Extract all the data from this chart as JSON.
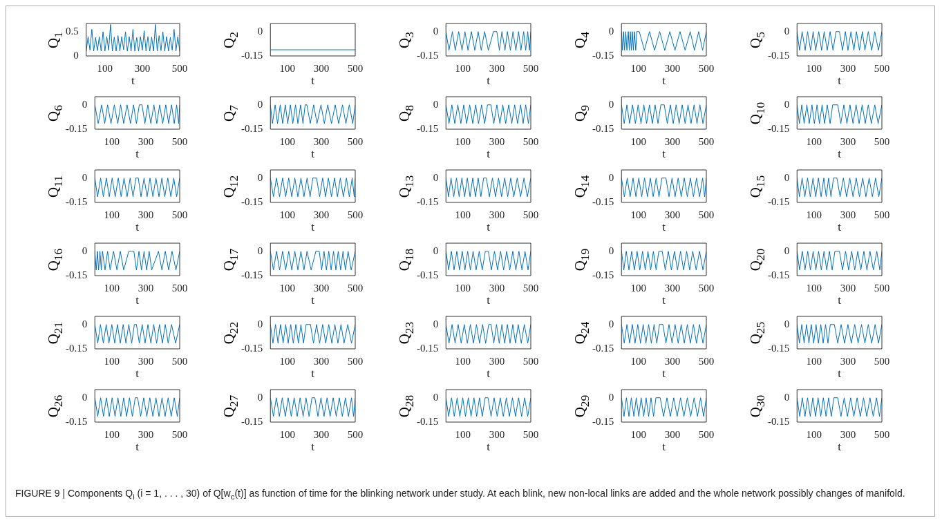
{
  "chart_data": [
    {
      "type": "line",
      "ylabel": "Q$_{1}$",
      "xlabel": "t",
      "color": "#0072bd",
      "xlim": [
        0,
        500
      ],
      "xticks": [
        100,
        300,
        500
      ],
      "ylim": [
        0,
        0.67
      ],
      "yticks": [
        0,
        0.5
      ],
      "x": [
        0,
        10,
        20,
        30,
        40,
        50,
        60,
        70,
        80,
        90,
        100,
        110,
        120,
        130,
        140,
        150,
        160,
        170,
        180,
        190,
        200,
        210,
        220,
        230,
        240,
        250,
        260,
        270,
        280,
        290,
        300,
        310,
        320,
        330,
        340,
        350,
        360,
        370,
        380,
        390,
        400,
        410,
        420,
        430,
        440,
        450,
        460,
        470,
        480,
        490,
        500
      ],
      "values": [
        0.1,
        0.4,
        0.12,
        0.55,
        0.1,
        0.38,
        0.11,
        0.4,
        0.1,
        0.5,
        0.1,
        0.4,
        0.12,
        0.65,
        0.1,
        0.39,
        0.1,
        0.42,
        0.1,
        0.4,
        0.13,
        0.5,
        0.1,
        0.4,
        0.1,
        0.55,
        0.1,
        0.38,
        0.1,
        0.4,
        0.12,
        0.52,
        0.1,
        0.4,
        0.1,
        0.39,
        0.1,
        0.65,
        0.1,
        0.42,
        0.11,
        0.5,
        0.1,
        0.4,
        0.1,
        0.38,
        0.12,
        0.55,
        0.1,
        0.4,
        0.1
      ]
    },
    {
      "type": "line",
      "ylabel": "Q$_{2}$",
      "xlabel": "t",
      "color": "#0072bd",
      "xlim": [
        0,
        500
      ],
      "xticks": [
        100,
        300,
        500
      ],
      "ylim": [
        -0.15,
        0.05
      ],
      "yticks": [
        -0.15,
        0
      ],
      "x": [
        0,
        500
      ],
      "values": [
        -0.112,
        -0.112
      ]
    },
    {
      "type": "line",
      "ylabel": "Q$_{3}$",
      "xlabel": "t",
      "color": "#0072bd",
      "xlim": [
        0,
        500
      ],
      "xticks": [
        100,
        300,
        500
      ],
      "ylim": [
        -0.15,
        0.05
      ],
      "yticks": [
        -0.15,
        0
      ],
      "x": [
        0,
        18,
        38,
        55,
        75,
        95,
        112,
        130,
        150,
        170,
        190,
        208,
        228,
        250,
        280,
        300,
        315,
        330,
        348,
        362,
        380,
        395,
        412,
        428,
        442,
        458,
        470,
        482,
        492,
        500
      ],
      "values": [
        0,
        -0.115,
        0,
        -0.115,
        0,
        -0.115,
        0,
        -0.115,
        0,
        -0.115,
        0,
        -0.115,
        0,
        -0.115,
        0,
        0,
        -0.115,
        0,
        -0.115,
        0,
        -0.115,
        0,
        -0.115,
        0,
        -0.115,
        0,
        -0.115,
        0,
        -0.115,
        0
      ]
    },
    {
      "type": "line",
      "ylabel": "Q$_{4}$",
      "xlabel": "t",
      "color": "#0072bd",
      "xlim": [
        0,
        500
      ],
      "xticks": [
        100,
        300,
        500
      ],
      "ylim": [
        -0.15,
        0.05
      ],
      "yticks": [
        -0.15,
        0
      ],
      "x": [
        0,
        6,
        12,
        18,
        25,
        32,
        40,
        46,
        52,
        58,
        64,
        70,
        76,
        84,
        90,
        105,
        135,
        165,
        195,
        225,
        255,
        285,
        315,
        345,
        375,
        405,
        430,
        455,
        478,
        500
      ],
      "values": [
        0,
        -0.115,
        0,
        -0.115,
        0,
        -0.115,
        0,
        -0.115,
        0,
        -0.115,
        0,
        -0.115,
        0,
        -0.115,
        0,
        0,
        -0.115,
        0,
        -0.115,
        0,
        -0.115,
        0,
        -0.115,
        0,
        -0.115,
        0,
        -0.115,
        0,
        -0.115,
        0
      ]
    },
    {
      "type": "line",
      "ylabel": "Q$_{5}$",
      "xlabel": "t",
      "color": "#0072bd",
      "xlim": [
        0,
        500
      ],
      "xticks": [
        100,
        300,
        500
      ],
      "ylim": [
        -0.15,
        0.05
      ],
      "yticks": [
        -0.15,
        0
      ],
      "x": [
        0,
        15,
        30,
        48,
        62,
        80,
        95,
        110,
        128,
        145,
        160,
        178,
        195,
        212,
        230,
        250,
        268,
        285,
        300,
        318,
        335,
        350,
        368,
        385,
        400,
        420,
        440,
        458,
        480,
        500
      ],
      "values": [
        0,
        -0.115,
        0,
        -0.115,
        0,
        -0.115,
        0,
        -0.115,
        0,
        -0.115,
        0,
        -0.115,
        0,
        -0.115,
        0,
        0,
        -0.115,
        0,
        -0.115,
        0,
        -0.115,
        0,
        -0.115,
        0,
        -0.115,
        0,
        -0.115,
        0,
        -0.115,
        0
      ]
    },
    {
      "type": "line",
      "ylabel": "Q$_{6}$",
      "xlabel": "t",
      "color": "#0072bd",
      "xlim": [
        0,
        500
      ],
      "xticks": [
        100,
        300,
        500
      ],
      "ylim": [
        -0.15,
        0.05
      ],
      "yticks": [
        -0.15,
        0
      ],
      "x": [
        0,
        20,
        40,
        58,
        75,
        95,
        115,
        135,
        152,
        170,
        190,
        210,
        228,
        245,
        262,
        278,
        295,
        312,
        330,
        348,
        365,
        382,
        400,
        418,
        435,
        452,
        468,
        482,
        494,
        500
      ],
      "values": [
        0,
        -0.115,
        0,
        -0.115,
        0,
        -0.115,
        0,
        -0.115,
        0,
        -0.115,
        0,
        -0.115,
        0,
        -0.115,
        0,
        0,
        -0.115,
        0,
        -0.115,
        0,
        -0.115,
        0,
        -0.115,
        0,
        -0.115,
        0,
        -0.115,
        0,
        -0.115,
        0
      ]
    },
    {
      "type": "line",
      "ylabel": "Q$_{7}$",
      "xlabel": "t",
      "color": "#0072bd",
      "xlim": [
        0,
        500
      ],
      "xticks": [
        100,
        300,
        500
      ],
      "ylim": [
        -0.15,
        0.05
      ],
      "yticks": [
        -0.15,
        0
      ],
      "x": [
        0,
        12,
        28,
        42,
        58,
        72,
        88,
        102,
        118,
        132,
        148,
        162,
        178,
        192,
        205,
        215,
        235,
        255,
        275,
        298,
        318,
        338,
        360,
        382,
        402,
        425,
        445,
        465,
        485,
        500
      ],
      "values": [
        0,
        -0.115,
        0,
        -0.115,
        0,
        -0.115,
        0,
        -0.115,
        0,
        -0.115,
        0,
        -0.115,
        0,
        -0.115,
        0,
        0,
        -0.115,
        0,
        -0.115,
        0,
        -0.115,
        0,
        -0.115,
        0,
        -0.115,
        0,
        -0.115,
        0,
        -0.115,
        0
      ]
    },
    {
      "type": "line",
      "ylabel": "Q$_{8}$",
      "xlabel": "t",
      "color": "#0072bd",
      "xlim": [
        0,
        500
      ],
      "xticks": [
        100,
        300,
        500
      ],
      "ylim": [
        -0.15,
        0.05
      ],
      "yticks": [
        -0.15,
        0
      ],
      "x": [
        0,
        18,
        35,
        52,
        70,
        88,
        105,
        122,
        140,
        158,
        175,
        192,
        210,
        228,
        245,
        265,
        282,
        300,
        318,
        335,
        352,
        370,
        388,
        405,
        422,
        440,
        455,
        470,
        486,
        500
      ],
      "values": [
        0,
        -0.115,
        0,
        -0.115,
        0,
        -0.115,
        0,
        -0.115,
        0,
        -0.115,
        0,
        -0.115,
        0,
        -0.115,
        0,
        0,
        -0.115,
        0,
        -0.115,
        0,
        -0.115,
        0,
        -0.115,
        0,
        -0.115,
        0,
        -0.115,
        0,
        -0.115,
        0
      ]
    },
    {
      "type": "line",
      "ylabel": "Q$_{9}$",
      "xlabel": "t",
      "color": "#0072bd",
      "xlim": [
        0,
        500
      ],
      "xticks": [
        100,
        300,
        500
      ],
      "ylim": [
        -0.15,
        0.05
      ],
      "yticks": [
        -0.15,
        0
      ],
      "x": [
        0,
        16,
        32,
        48,
        65,
        82,
        98,
        115,
        132,
        148,
        165,
        182,
        198,
        215,
        232,
        252,
        270,
        288,
        305,
        322,
        340,
        358,
        375,
        392,
        410,
        428,
        445,
        462,
        480,
        500
      ],
      "values": [
        0,
        -0.115,
        0,
        -0.115,
        0,
        -0.115,
        0,
        -0.115,
        0,
        -0.115,
        0,
        -0.115,
        0,
        -0.115,
        0,
        0,
        -0.115,
        0,
        -0.115,
        0,
        -0.115,
        0,
        -0.115,
        0,
        -0.115,
        0,
        -0.115,
        0,
        -0.115,
        0
      ]
    },
    {
      "type": "line",
      "ylabel": "Q$_{10}$",
      "xlabel": "t",
      "color": "#0072bd",
      "xlim": [
        0,
        500
      ],
      "xticks": [
        100,
        300,
        500
      ],
      "ylim": [
        -0.15,
        0.05
      ],
      "yticks": [
        -0.15,
        0
      ],
      "x": [
        0,
        14,
        28,
        42,
        58,
        72,
        88,
        102,
        118,
        132,
        148,
        162,
        178,
        195,
        210,
        240,
        258,
        276,
        294,
        312,
        330,
        348,
        366,
        384,
        402,
        420,
        438,
        458,
        478,
        500
      ],
      "values": [
        0,
        -0.115,
        0,
        -0.115,
        0,
        -0.115,
        0,
        -0.115,
        0,
        -0.115,
        0,
        -0.115,
        0,
        -0.115,
        0,
        0,
        -0.115,
        0,
        -0.115,
        0,
        -0.115,
        0,
        -0.115,
        0,
        -0.115,
        0,
        -0.115,
        0,
        -0.115,
        0
      ]
    },
    {
      "type": "line",
      "ylabel": "Q$_{11}$",
      "xlabel": "t",
      "color": "#0072bd",
      "xlim": [
        0,
        500
      ],
      "xticks": [
        100,
        300,
        500
      ],
      "ylim": [
        -0.15,
        0.05
      ],
      "yticks": [
        -0.15,
        0
      ],
      "x": [
        0,
        16,
        34,
        50,
        68,
        85,
        102,
        120,
        138,
        155,
        172,
        190,
        208,
        225,
        242,
        256,
        272,
        290,
        308,
        325,
        342,
        360,
        378,
        395,
        412,
        430,
        448,
        465,
        482,
        500
      ],
      "values": [
        0,
        -0.115,
        0,
        -0.115,
        0,
        -0.115,
        0,
        -0.115,
        0,
        -0.115,
        0,
        -0.115,
        0,
        -0.115,
        0,
        0,
        -0.115,
        0,
        -0.115,
        0,
        -0.115,
        0,
        -0.115,
        0,
        -0.115,
        0,
        -0.115,
        0,
        -0.115,
        0
      ]
    },
    {
      "type": "line",
      "ylabel": "Q$_{12}$",
      "xlabel": "t",
      "color": "#0072bd",
      "xlim": [
        0,
        500
      ],
      "xticks": [
        100,
        300,
        500
      ],
      "ylim": [
        -0.15,
        0.05
      ],
      "yticks": [
        -0.15,
        0
      ],
      "x": [
        0,
        18,
        36,
        54,
        72,
        90,
        108,
        126,
        144,
        162,
        180,
        198,
        216,
        234,
        250,
        272,
        290,
        308,
        325,
        342,
        360,
        378,
        395,
        412,
        430,
        448,
        465,
        482,
        494,
        500
      ],
      "values": [
        0,
        -0.115,
        0,
        -0.115,
        0,
        -0.115,
        0,
        -0.115,
        0,
        -0.115,
        0,
        -0.115,
        0,
        -0.115,
        0,
        0,
        -0.115,
        0,
        -0.115,
        0,
        -0.115,
        0,
        -0.115,
        0,
        -0.115,
        0,
        -0.115,
        0,
        -0.115,
        0
      ]
    },
    {
      "type": "line",
      "ylabel": "Q$_{13}$",
      "xlabel": "t",
      "color": "#0072bd",
      "xlim": [
        0,
        500
      ],
      "xticks": [
        100,
        300,
        500
      ],
      "ylim": [
        -0.15,
        0.05
      ],
      "yticks": [
        -0.15,
        0
      ],
      "x": [
        0,
        15,
        30,
        46,
        62,
        78,
        94,
        110,
        126,
        142,
        158,
        174,
        190,
        206,
        222,
        238,
        256,
        274,
        292,
        310,
        328,
        346,
        364,
        382,
        400,
        420,
        440,
        460,
        480,
        500
      ],
      "values": [
        0,
        -0.115,
        0,
        -0.115,
        0,
        -0.115,
        0,
        -0.115,
        0,
        -0.115,
        0,
        -0.115,
        0,
        -0.115,
        0,
        0,
        -0.115,
        0,
        -0.115,
        0,
        -0.115,
        0,
        -0.115,
        0,
        -0.115,
        0,
        -0.115,
        0,
        -0.115,
        0
      ]
    },
    {
      "type": "line",
      "ylabel": "Q$_{14}$",
      "xlabel": "t",
      "color": "#0072bd",
      "xlim": [
        0,
        500
      ],
      "xticks": [
        100,
        300,
        500
      ],
      "ylim": [
        -0.15,
        0.05
      ],
      "yticks": [
        -0.15,
        0
      ],
      "x": [
        0,
        17,
        34,
        51,
        68,
        85,
        102,
        119,
        136,
        153,
        170,
        187,
        204,
        221,
        238,
        262,
        280,
        298,
        316,
        334,
        352,
        370,
        388,
        406,
        424,
        442,
        460,
        478,
        490,
        500
      ],
      "values": [
        0,
        -0.115,
        0,
        -0.115,
        0,
        -0.115,
        0,
        -0.115,
        0,
        -0.115,
        0,
        -0.115,
        0,
        -0.115,
        0,
        0,
        -0.115,
        0,
        -0.115,
        0,
        -0.115,
        0,
        -0.115,
        0,
        -0.115,
        0,
        -0.115,
        0,
        -0.115,
        0
      ]
    },
    {
      "type": "line",
      "ylabel": "Q$_{15}$",
      "xlabel": "t",
      "color": "#0072bd",
      "xlim": [
        0,
        500
      ],
      "xticks": [
        100,
        300,
        500
      ],
      "ylim": [
        -0.15,
        0.05
      ],
      "yticks": [
        -0.15,
        0
      ],
      "x": [
        0,
        14,
        30,
        46,
        62,
        78,
        94,
        110,
        126,
        142,
        158,
        172,
        186,
        200,
        215,
        235,
        254,
        273,
        292,
        311,
        330,
        349,
        368,
        387,
        406,
        425,
        444,
        463,
        482,
        500
      ],
      "values": [
        0,
        -0.115,
        0,
        -0.115,
        0,
        -0.115,
        0,
        -0.115,
        0,
        -0.115,
        0,
        -0.115,
        0,
        -0.115,
        0,
        0,
        -0.115,
        0,
        -0.115,
        0,
        -0.115,
        0,
        -0.115,
        0,
        -0.115,
        0,
        -0.115,
        0,
        -0.115,
        0
      ]
    },
    {
      "type": "line",
      "ylabel": "Q$_{16}$",
      "xlabel": "t",
      "color": "#0072bd",
      "xlim": [
        0,
        500
      ],
      "xticks": [
        100,
        300,
        500
      ],
      "ylim": [
        -0.15,
        0.05
      ],
      "yticks": [
        -0.15,
        0
      ],
      "x": [
        0,
        8,
        15,
        22,
        30,
        38,
        45,
        60,
        75,
        90,
        110,
        130,
        150,
        170,
        200,
        230,
        245,
        260,
        275,
        290,
        305,
        320,
        335,
        375,
        395,
        415,
        435,
        455,
        478,
        500
      ],
      "values": [
        0,
        -0.115,
        0,
        -0.115,
        0,
        -0.115,
        0,
        -0.115,
        0,
        -0.115,
        0,
        -0.115,
        0,
        -0.115,
        0,
        0,
        -0.115,
        0,
        -0.115,
        0,
        -0.115,
        0,
        -0.115,
        0,
        -0.115,
        0,
        -0.115,
        0,
        -0.115,
        0
      ]
    },
    {
      "type": "line",
      "ylabel": "Q$_{17}$",
      "xlabel": "t",
      "color": "#0072bd",
      "xlim": [
        0,
        500
      ],
      "xticks": [
        100,
        300,
        500
      ],
      "ylim": [
        -0.15,
        0.05
      ],
      "yticks": [
        -0.15,
        0
      ],
      "x": [
        0,
        18,
        36,
        54,
        72,
        90,
        108,
        126,
        144,
        162,
        180,
        198,
        216,
        240,
        268,
        288,
        302,
        316,
        330,
        344,
        358,
        372,
        386,
        400,
        414,
        428,
        442,
        458,
        476,
        500
      ],
      "values": [
        0,
        -0.115,
        0,
        -0.115,
        0,
        -0.115,
        0,
        -0.115,
        0,
        -0.115,
        0,
        -0.115,
        0,
        -0.115,
        0,
        0,
        -0.115,
        0,
        -0.115,
        0,
        -0.115,
        0,
        -0.115,
        0,
        -0.115,
        0,
        -0.115,
        0,
        -0.115,
        0
      ]
    },
    {
      "type": "line",
      "ylabel": "Q$_{18}$",
      "xlabel": "t",
      "color": "#0072bd",
      "xlim": [
        0,
        500
      ],
      "xticks": [
        100,
        300,
        500
      ],
      "ylim": [
        -0.15,
        0.05
      ],
      "yticks": [
        -0.15,
        0
      ],
      "x": [
        0,
        16,
        32,
        48,
        64,
        80,
        96,
        112,
        128,
        144,
        160,
        178,
        196,
        214,
        232,
        250,
        268,
        286,
        304,
        322,
        340,
        358,
        376,
        394,
        412,
        430,
        448,
        466,
        484,
        500
      ],
      "values": [
        0,
        -0.115,
        0,
        -0.115,
        0,
        -0.115,
        0,
        -0.115,
        0,
        -0.115,
        0,
        -0.115,
        0,
        -0.115,
        0,
        0,
        -0.115,
        0,
        -0.115,
        0,
        -0.115,
        0,
        -0.115,
        0,
        -0.115,
        0,
        -0.115,
        0,
        -0.115,
        0
      ]
    },
    {
      "type": "line",
      "ylabel": "Q$_{19}$",
      "xlabel": "t",
      "color": "#0072bd",
      "xlim": [
        0,
        500
      ],
      "xticks": [
        100,
        300,
        500
      ],
      "ylim": [
        -0.15,
        0.05
      ],
      "yticks": [
        -0.15,
        0
      ],
      "x": [
        0,
        14,
        28,
        44,
        60,
        76,
        92,
        108,
        124,
        140,
        156,
        172,
        188,
        204,
        220,
        240,
        258,
        276,
        294,
        312,
        330,
        348,
        366,
        384,
        402,
        420,
        440,
        460,
        480,
        500
      ],
      "values": [
        0,
        -0.115,
        0,
        -0.115,
        0,
        -0.115,
        0,
        -0.115,
        0,
        -0.115,
        0,
        -0.115,
        0,
        -0.115,
        0,
        0,
        -0.115,
        0,
        -0.115,
        0,
        -0.115,
        0,
        -0.115,
        0,
        -0.115,
        0,
        -0.115,
        0,
        -0.115,
        0
      ]
    },
    {
      "type": "line",
      "ylabel": "Q$_{20}$",
      "xlabel": "t",
      "color": "#0072bd",
      "xlim": [
        0,
        500
      ],
      "xticks": [
        100,
        300,
        500
      ],
      "ylim": [
        -0.15,
        0.05
      ],
      "yticks": [
        -0.15,
        0
      ],
      "x": [
        0,
        15,
        31,
        47,
        63,
        79,
        95,
        111,
        127,
        143,
        159,
        175,
        191,
        207,
        223,
        250,
        268,
        286,
        304,
        322,
        340,
        358,
        376,
        394,
        412,
        430,
        450,
        470,
        488,
        500
      ],
      "values": [
        0,
        -0.115,
        0,
        -0.115,
        0,
        -0.115,
        0,
        -0.115,
        0,
        -0.115,
        0,
        -0.115,
        0,
        -0.115,
        0,
        0,
        -0.115,
        0,
        -0.115,
        0,
        -0.115,
        0,
        -0.115,
        0,
        -0.115,
        0,
        -0.115,
        0,
        -0.115,
        0
      ]
    },
    {
      "type": "line",
      "ylabel": "Q$_{21}$",
      "xlabel": "t",
      "color": "#0072bd",
      "xlim": [
        0,
        500
      ],
      "xticks": [
        100,
        300,
        500
      ],
      "ylim": [
        -0.15,
        0.05
      ],
      "yticks": [
        -0.15,
        0
      ],
      "x": [
        0,
        17,
        33,
        50,
        67,
        83,
        100,
        117,
        133,
        150,
        167,
        183,
        200,
        217,
        233,
        245,
        262,
        279,
        296,
        313,
        330,
        347,
        364,
        381,
        398,
        415,
        432,
        452,
        476,
        500
      ],
      "values": [
        0,
        -0.115,
        0,
        -0.115,
        0,
        -0.115,
        0,
        -0.115,
        0,
        -0.115,
        0,
        -0.115,
        0,
        -0.115,
        0,
        0,
        -0.115,
        0,
        -0.115,
        0,
        -0.115,
        0,
        -0.115,
        0,
        -0.115,
        0,
        -0.115,
        0,
        -0.115,
        0
      ]
    },
    {
      "type": "line",
      "ylabel": "Q$_{22}$",
      "xlabel": "t",
      "color": "#0072bd",
      "xlim": [
        0,
        500
      ],
      "xticks": [
        100,
        300,
        500
      ],
      "ylim": [
        -0.15,
        0.05
      ],
      "yticks": [
        -0.15,
        0
      ],
      "x": [
        0,
        15,
        30,
        45,
        60,
        75,
        90,
        105,
        120,
        135,
        150,
        165,
        180,
        195,
        210,
        236,
        254,
        272,
        290,
        308,
        326,
        344,
        362,
        380,
        398,
        416,
        434,
        456,
        478,
        500
      ],
      "values": [
        0,
        -0.115,
        0,
        -0.115,
        0,
        -0.115,
        0,
        -0.115,
        0,
        -0.115,
        0,
        -0.115,
        0,
        -0.115,
        0,
        0,
        -0.115,
        0,
        -0.115,
        0,
        -0.115,
        0,
        -0.115,
        0,
        -0.115,
        0,
        -0.115,
        0,
        -0.115,
        0
      ]
    },
    {
      "type": "line",
      "ylabel": "Q$_{23}$",
      "xlabel": "t",
      "color": "#0072bd",
      "xlim": [
        0,
        500
      ],
      "xticks": [
        100,
        300,
        500
      ],
      "ylim": [
        -0.15,
        0.05
      ],
      "yticks": [
        -0.15,
        0
      ],
      "x": [
        0,
        18,
        36,
        54,
        72,
        90,
        108,
        126,
        144,
        162,
        180,
        198,
        216,
        234,
        252,
        266,
        282,
        298,
        314,
        330,
        346,
        362,
        378,
        394,
        410,
        426,
        444,
        462,
        482,
        500
      ],
      "values": [
        0,
        -0.115,
        0,
        -0.115,
        0,
        -0.115,
        0,
        -0.115,
        0,
        -0.115,
        0,
        -0.115,
        0,
        -0.115,
        0,
        0,
        -0.115,
        0,
        -0.115,
        0,
        -0.115,
        0,
        -0.115,
        0,
        -0.115,
        0,
        -0.115,
        0,
        -0.115,
        0
      ]
    },
    {
      "type": "line",
      "ylabel": "Q$_{24}$",
      "xlabel": "t",
      "color": "#0072bd",
      "xlim": [
        0,
        500
      ],
      "xticks": [
        100,
        300,
        500
      ],
      "ylim": [
        -0.15,
        0.05
      ],
      "yticks": [
        -0.15,
        0
      ],
      "x": [
        0,
        16,
        32,
        48,
        64,
        80,
        96,
        112,
        128,
        144,
        160,
        176,
        192,
        208,
        224,
        244,
        262,
        280,
        298,
        316,
        334,
        352,
        370,
        388,
        406,
        424,
        442,
        460,
        480,
        500
      ],
      "values": [
        0,
        -0.115,
        0,
        -0.115,
        0,
        -0.115,
        0,
        -0.115,
        0,
        -0.115,
        0,
        -0.115,
        0,
        -0.115,
        0,
        0,
        -0.115,
        0,
        -0.115,
        0,
        -0.115,
        0,
        -0.115,
        0,
        -0.115,
        0,
        -0.115,
        0,
        -0.115,
        0
      ]
    },
    {
      "type": "line",
      "ylabel": "Q$_{25}$",
      "xlabel": "t",
      "color": "#0072bd",
      "xlim": [
        0,
        500
      ],
      "xticks": [
        100,
        300,
        500
      ],
      "ylim": [
        -0.15,
        0.05
      ],
      "yticks": [
        -0.15,
        0
      ],
      "x": [
        0,
        14,
        28,
        42,
        56,
        70,
        84,
        98,
        112,
        126,
        140,
        154,
        168,
        182,
        196,
        220,
        240,
        260,
        280,
        300,
        320,
        340,
        360,
        380,
        400,
        420,
        440,
        460,
        480,
        500
      ],
      "values": [
        0,
        -0.115,
        0,
        -0.115,
        0,
        -0.115,
        0,
        -0.115,
        0,
        -0.115,
        0,
        -0.115,
        0,
        -0.115,
        0,
        0,
        -0.115,
        0,
        -0.115,
        0,
        -0.115,
        0,
        -0.115,
        0,
        -0.115,
        0,
        -0.115,
        0,
        -0.115,
        0
      ]
    },
    {
      "type": "line",
      "ylabel": "Q$_{26}$",
      "xlabel": "t",
      "color": "#0072bd",
      "xlim": [
        0,
        500
      ],
      "xticks": [
        100,
        300,
        500
      ],
      "ylim": [
        -0.15,
        0.05
      ],
      "yticks": [
        -0.15,
        0
      ],
      "x": [
        0,
        17,
        34,
        51,
        68,
        85,
        102,
        119,
        136,
        153,
        170,
        187,
        204,
        221,
        238,
        252,
        270,
        288,
        306,
        324,
        342,
        360,
        378,
        396,
        414,
        432,
        450,
        468,
        486,
        500
      ],
      "values": [
        0,
        -0.115,
        0,
        -0.115,
        0,
        -0.115,
        0,
        -0.115,
        0,
        -0.115,
        0,
        -0.115,
        0,
        -0.115,
        0,
        0,
        -0.115,
        0,
        -0.115,
        0,
        -0.115,
        0,
        -0.115,
        0,
        -0.115,
        0,
        -0.115,
        0,
        -0.115,
        0
      ]
    },
    {
      "type": "line",
      "ylabel": "Q$_{27}$",
      "xlabel": "t",
      "color": "#0072bd",
      "xlim": [
        0,
        500
      ],
      "xticks": [
        100,
        300,
        500
      ],
      "ylim": [
        -0.15,
        0.05
      ],
      "yticks": [
        -0.15,
        0
      ],
      "x": [
        0,
        18,
        35,
        53,
        70,
        88,
        105,
        123,
        140,
        158,
        175,
        193,
        210,
        228,
        245,
        262,
        280,
        298,
        316,
        334,
        352,
        370,
        388,
        406,
        424,
        442,
        460,
        478,
        490,
        500
      ],
      "values": [
        0,
        -0.115,
        0,
        -0.115,
        0,
        -0.115,
        0,
        -0.115,
        0,
        -0.115,
        0,
        -0.115,
        0,
        -0.115,
        0,
        0,
        -0.115,
        0,
        -0.115,
        0,
        -0.115,
        0,
        -0.115,
        0,
        -0.115,
        0,
        -0.115,
        0,
        -0.115,
        0
      ]
    },
    {
      "type": "line",
      "ylabel": "Q$_{28}$",
      "xlabel": "t",
      "color": "#0072bd",
      "xlim": [
        0,
        500
      ],
      "xticks": [
        100,
        300,
        500
      ],
      "ylim": [
        -0.15,
        0.05
      ],
      "yticks": [
        -0.15,
        0
      ],
      "x": [
        0,
        16,
        33,
        49,
        66,
        82,
        99,
        115,
        132,
        148,
        165,
        181,
        198,
        214,
        231,
        248,
        266,
        284,
        302,
        320,
        338,
        356,
        374,
        392,
        410,
        428,
        446,
        464,
        482,
        500
      ],
      "values": [
        0,
        -0.115,
        0,
        -0.115,
        0,
        -0.115,
        0,
        -0.115,
        0,
        -0.115,
        0,
        -0.115,
        0,
        -0.115,
        0,
        0,
        -0.115,
        0,
        -0.115,
        0,
        -0.115,
        0,
        -0.115,
        0,
        -0.115,
        0,
        -0.115,
        0,
        -0.115,
        0
      ]
    },
    {
      "type": "line",
      "ylabel": "Q$_{29}$",
      "xlabel": "t",
      "color": "#0072bd",
      "xlim": [
        0,
        500
      ],
      "xticks": [
        100,
        300,
        500
      ],
      "ylim": [
        -0.15,
        0.05
      ],
      "yticks": [
        -0.15,
        0
      ],
      "x": [
        0,
        15,
        29,
        44,
        58,
        73,
        87,
        102,
        116,
        131,
        145,
        160,
        174,
        189,
        203,
        228,
        248,
        268,
        288,
        308,
        328,
        348,
        368,
        388,
        408,
        428,
        448,
        466,
        484,
        500
      ],
      "values": [
        0,
        -0.115,
        0,
        -0.115,
        0,
        -0.115,
        0,
        -0.115,
        0,
        -0.115,
        0,
        -0.115,
        0,
        -0.115,
        0,
        0,
        -0.115,
        0,
        -0.115,
        0,
        -0.115,
        0,
        -0.115,
        0,
        -0.115,
        0,
        -0.115,
        0,
        -0.115,
        0
      ]
    },
    {
      "type": "line",
      "ylabel": "Q$_{30}$",
      "xlabel": "t",
      "color": "#0072bd",
      "xlim": [
        0,
        500
      ],
      "xticks": [
        100,
        300,
        500
      ],
      "ylim": [
        -0.15,
        0.05
      ],
      "yticks": [
        -0.15,
        0
      ],
      "x": [
        0,
        16,
        31,
        47,
        62,
        78,
        93,
        109,
        124,
        140,
        155,
        171,
        186,
        202,
        217,
        240,
        259,
        278,
        297,
        316,
        335,
        354,
        373,
        392,
        411,
        430,
        449,
        468,
        486,
        500
      ],
      "values": [
        0,
        -0.115,
        0,
        -0.115,
        0,
        -0.115,
        0,
        -0.115,
        0,
        -0.115,
        0,
        -0.115,
        0,
        -0.115,
        0,
        0,
        -0.115,
        0,
        -0.115,
        0,
        -0.115,
        0,
        -0.115,
        0,
        -0.115,
        0,
        -0.115,
        0,
        -0.115,
        0
      ],
      "annotations": [
        "FIGURE 9 | Components Q$_{i}$ (i = 1, . . . , 30) of Q[w$_{c}$(t)] as function of time for the blinking network under study. At each blink, new non-local links are added and the whole network possibly changes of manifold."
      ]
    }
  ]
}
